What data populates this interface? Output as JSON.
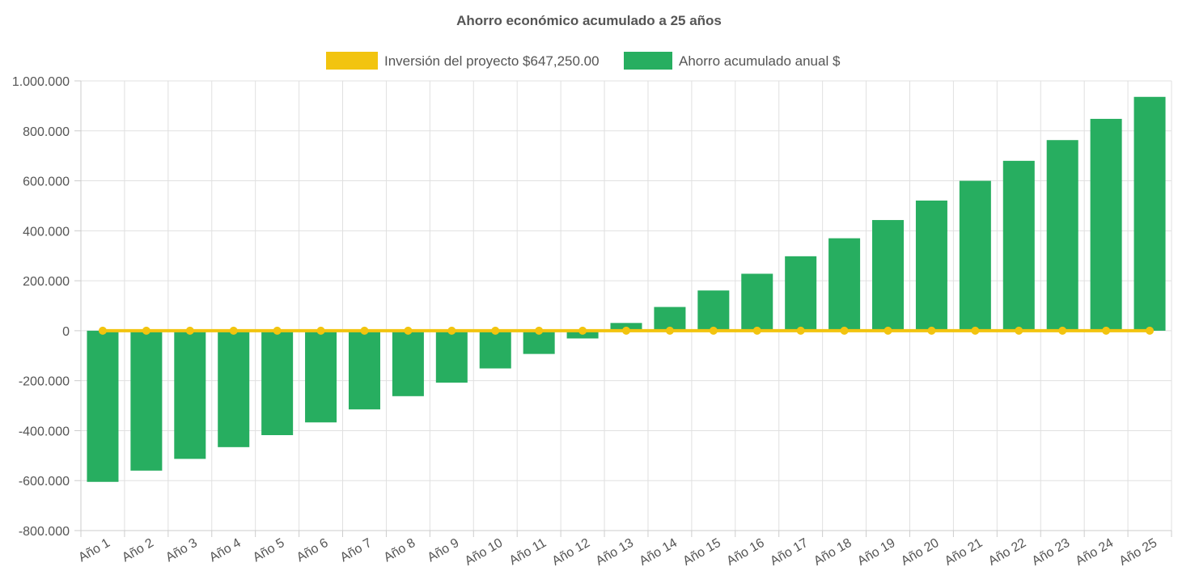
{
  "chart_data": {
    "type": "bar",
    "title": "Ahorro económico acumulado a 25 años",
    "categories": [
      "Año 1",
      "Año 2",
      "Año 3",
      "Año 4",
      "Año 5",
      "Año 6",
      "Año 7",
      "Año 8",
      "Año 9",
      "Año 10",
      "Año 11",
      "Año 12",
      "Año 13",
      "Año 14",
      "Año 15",
      "Año 16",
      "Año 17",
      "Año 18",
      "Año 19",
      "Año 20",
      "Año 21",
      "Año 22",
      "Año 23",
      "Año 24",
      "Año 25"
    ],
    "series": [
      {
        "name": "Inversión del proyecto $647,250.00",
        "type": "line",
        "color": "#f2c40f",
        "values": [
          0,
          0,
          0,
          0,
          0,
          0,
          0,
          0,
          0,
          0,
          0,
          0,
          0,
          0,
          0,
          0,
          0,
          0,
          0,
          0,
          0,
          0,
          0,
          0,
          0
        ]
      },
      {
        "name": "Ahorro acumulado anual $",
        "type": "bar",
        "color": "#27ae60",
        "values": [
          -605000,
          -560000,
          -513000,
          -466000,
          -418000,
          -367000,
          -315000,
          -262000,
          -208000,
          -151000,
          -93000,
          -31000,
          31000,
          95000,
          161000,
          228000,
          298000,
          370000,
          443000,
          521000,
          600000,
          680000,
          763000,
          848000,
          936000
        ]
      }
    ],
    "ylim": [
      -800000,
      1000000
    ],
    "yticks": [
      1000000,
      800000,
      600000,
      400000,
      200000,
      0,
      -200000,
      -400000,
      -600000,
      -800000
    ],
    "ytick_labels": [
      "1.000.000",
      "800.000",
      "600.000",
      "400.000",
      "200.000",
      "0",
      "-200.000",
      "-400.000",
      "-600.000",
      "-800.000"
    ],
    "grid": true,
    "legend_position": "top-center"
  }
}
